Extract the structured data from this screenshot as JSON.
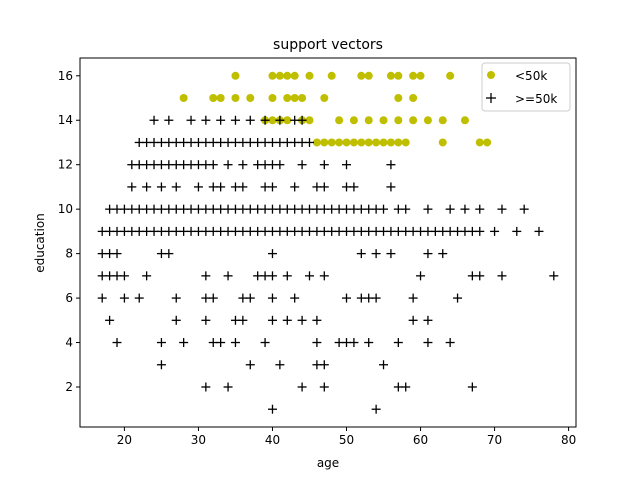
{
  "chart_data": {
    "type": "scatter",
    "title": "support vectors",
    "xlabel": "age",
    "ylabel": "education",
    "xlim": [
      14,
      81
    ],
    "ylim": [
      0.2,
      16.8
    ],
    "xticks": [
      20,
      30,
      40,
      50,
      60,
      70,
      80
    ],
    "yticks": [
      2,
      4,
      6,
      8,
      10,
      12,
      14,
      16
    ],
    "grid": false,
    "legend_position": "top-right",
    "series": [
      {
        "name": "<50k",
        "marker": "circle",
        "color": "#bfbf00",
        "points": [
          [
            35,
            16
          ],
          [
            40,
            16
          ],
          [
            41,
            16
          ],
          [
            42,
            16
          ],
          [
            43,
            16
          ],
          [
            45,
            16
          ],
          [
            48,
            16
          ],
          [
            52,
            16
          ],
          [
            53,
            16
          ],
          [
            56,
            16
          ],
          [
            57,
            16
          ],
          [
            59,
            16
          ],
          [
            60,
            16
          ],
          [
            64,
            16
          ],
          [
            28,
            15
          ],
          [
            32,
            15
          ],
          [
            33,
            15
          ],
          [
            35,
            15
          ],
          [
            37,
            15
          ],
          [
            40,
            15
          ],
          [
            42,
            15
          ],
          [
            43,
            15
          ],
          [
            44,
            15
          ],
          [
            47,
            15
          ],
          [
            57,
            15
          ],
          [
            59,
            15
          ],
          [
            39,
            14
          ],
          [
            40,
            14
          ],
          [
            41,
            14
          ],
          [
            42,
            14
          ],
          [
            44,
            14
          ],
          [
            45,
            14
          ],
          [
            49,
            14
          ],
          [
            51,
            14
          ],
          [
            53,
            14
          ],
          [
            55,
            14
          ],
          [
            57,
            14
          ],
          [
            59,
            14
          ],
          [
            61,
            14
          ],
          [
            63,
            14
          ],
          [
            66,
            14
          ],
          [
            46,
            13
          ],
          [
            47,
            13
          ],
          [
            48,
            13
          ],
          [
            49,
            13
          ],
          [
            50,
            13
          ],
          [
            51,
            13
          ],
          [
            52,
            13
          ],
          [
            53,
            13
          ],
          [
            54,
            13
          ],
          [
            55,
            13
          ],
          [
            56,
            13
          ],
          [
            57,
            13
          ],
          [
            58,
            13
          ],
          [
            63,
            13
          ],
          [
            68,
            13
          ],
          [
            69,
            13
          ]
        ]
      },
      {
        "name": ">=50k",
        "marker": "plus",
        "color": "#000000",
        "points": [
          [
            24,
            14
          ],
          [
            26,
            14
          ],
          [
            29,
            14
          ],
          [
            31,
            14
          ],
          [
            33,
            14
          ],
          [
            35,
            14
          ],
          [
            37,
            14
          ],
          [
            39,
            14
          ],
          [
            41,
            14
          ],
          [
            43,
            14
          ],
          [
            44,
            14
          ],
          [
            22,
            13
          ],
          [
            23,
            13
          ],
          [
            24,
            13
          ],
          [
            25,
            13
          ],
          [
            26,
            13
          ],
          [
            27,
            13
          ],
          [
            28,
            13
          ],
          [
            29,
            13
          ],
          [
            30,
            13
          ],
          [
            31,
            13
          ],
          [
            32,
            13
          ],
          [
            33,
            13
          ],
          [
            34,
            13
          ],
          [
            35,
            13
          ],
          [
            36,
            13
          ],
          [
            37,
            13
          ],
          [
            38,
            13
          ],
          [
            39,
            13
          ],
          [
            40,
            13
          ],
          [
            41,
            13
          ],
          [
            42,
            13
          ],
          [
            43,
            13
          ],
          [
            44,
            13
          ],
          [
            45,
            13
          ],
          [
            21,
            12
          ],
          [
            22,
            12
          ],
          [
            23,
            12
          ],
          [
            24,
            12
          ],
          [
            25,
            12
          ],
          [
            26,
            12
          ],
          [
            27,
            12
          ],
          [
            28,
            12
          ],
          [
            29,
            12
          ],
          [
            30,
            12
          ],
          [
            31,
            12
          ],
          [
            32,
            12
          ],
          [
            34,
            12
          ],
          [
            36,
            12
          ],
          [
            38,
            12
          ],
          [
            39,
            12
          ],
          [
            40,
            12
          ],
          [
            41,
            12
          ],
          [
            44,
            12
          ],
          [
            47,
            12
          ],
          [
            50,
            12
          ],
          [
            56,
            12
          ],
          [
            21,
            11
          ],
          [
            23,
            11
          ],
          [
            25,
            11
          ],
          [
            27,
            11
          ],
          [
            30,
            11
          ],
          [
            32,
            11
          ],
          [
            33,
            11
          ],
          [
            35,
            11
          ],
          [
            36,
            11
          ],
          [
            39,
            11
          ],
          [
            40,
            11
          ],
          [
            43,
            11
          ],
          [
            46,
            11
          ],
          [
            47,
            11
          ],
          [
            50,
            11
          ],
          [
            51,
            11
          ],
          [
            56,
            11
          ],
          [
            18,
            10
          ],
          [
            19,
            10
          ],
          [
            20,
            10
          ],
          [
            21,
            10
          ],
          [
            22,
            10
          ],
          [
            23,
            10
          ],
          [
            24,
            10
          ],
          [
            25,
            10
          ],
          [
            26,
            10
          ],
          [
            27,
            10
          ],
          [
            28,
            10
          ],
          [
            29,
            10
          ],
          [
            30,
            10
          ],
          [
            31,
            10
          ],
          [
            32,
            10
          ],
          [
            33,
            10
          ],
          [
            34,
            10
          ],
          [
            35,
            10
          ],
          [
            36,
            10
          ],
          [
            37,
            10
          ],
          [
            38,
            10
          ],
          [
            39,
            10
          ],
          [
            40,
            10
          ],
          [
            41,
            10
          ],
          [
            42,
            10
          ],
          [
            43,
            10
          ],
          [
            44,
            10
          ],
          [
            45,
            10
          ],
          [
            46,
            10
          ],
          [
            47,
            10
          ],
          [
            48,
            10
          ],
          [
            49,
            10
          ],
          [
            50,
            10
          ],
          [
            51,
            10
          ],
          [
            52,
            10
          ],
          [
            53,
            10
          ],
          [
            54,
            10
          ],
          [
            55,
            10
          ],
          [
            57,
            10
          ],
          [
            58,
            10
          ],
          [
            61,
            10
          ],
          [
            64,
            10
          ],
          [
            66,
            10
          ],
          [
            68,
            10
          ],
          [
            71,
            10
          ],
          [
            74,
            10
          ],
          [
            17,
            9
          ],
          [
            18,
            9
          ],
          [
            19,
            9
          ],
          [
            20,
            9
          ],
          [
            21,
            9
          ],
          [
            22,
            9
          ],
          [
            23,
            9
          ],
          [
            24,
            9
          ],
          [
            25,
            9
          ],
          [
            26,
            9
          ],
          [
            27,
            9
          ],
          [
            28,
            9
          ],
          [
            29,
            9
          ],
          [
            30,
            9
          ],
          [
            31,
            9
          ],
          [
            32,
            9
          ],
          [
            33,
            9
          ],
          [
            34,
            9
          ],
          [
            35,
            9
          ],
          [
            36,
            9
          ],
          [
            37,
            9
          ],
          [
            38,
            9
          ],
          [
            39,
            9
          ],
          [
            40,
            9
          ],
          [
            41,
            9
          ],
          [
            42,
            9
          ],
          [
            43,
            9
          ],
          [
            44,
            9
          ],
          [
            45,
            9
          ],
          [
            46,
            9
          ],
          [
            47,
            9
          ],
          [
            48,
            9
          ],
          [
            49,
            9
          ],
          [
            50,
            9
          ],
          [
            51,
            9
          ],
          [
            52,
            9
          ],
          [
            53,
            9
          ],
          [
            54,
            9
          ],
          [
            55,
            9
          ],
          [
            56,
            9
          ],
          [
            57,
            9
          ],
          [
            58,
            9
          ],
          [
            59,
            9
          ],
          [
            60,
            9
          ],
          [
            61,
            9
          ],
          [
            62,
            9
          ],
          [
            63,
            9
          ],
          [
            64,
            9
          ],
          [
            65,
            9
          ],
          [
            66,
            9
          ],
          [
            67,
            9
          ],
          [
            68,
            9
          ],
          [
            70,
            9
          ],
          [
            73,
            9
          ],
          [
            76,
            9
          ],
          [
            17,
            8
          ],
          [
            18,
            8
          ],
          [
            19,
            8
          ],
          [
            25,
            8
          ],
          [
            26,
            8
          ],
          [
            40,
            8
          ],
          [
            52,
            8
          ],
          [
            54,
            8
          ],
          [
            56,
            8
          ],
          [
            61,
            8
          ],
          [
            63,
            8
          ],
          [
            17,
            7
          ],
          [
            18,
            7
          ],
          [
            19,
            7
          ],
          [
            20,
            7
          ],
          [
            23,
            7
          ],
          [
            31,
            7
          ],
          [
            34,
            7
          ],
          [
            38,
            7
          ],
          [
            39,
            7
          ],
          [
            40,
            7
          ],
          [
            42,
            7
          ],
          [
            45,
            7
          ],
          [
            47,
            7
          ],
          [
            60,
            7
          ],
          [
            67,
            7
          ],
          [
            68,
            7
          ],
          [
            71,
            7
          ],
          [
            78,
            7
          ],
          [
            17,
            6
          ],
          [
            20,
            6
          ],
          [
            22,
            6
          ],
          [
            27,
            6
          ],
          [
            31,
            6
          ],
          [
            32,
            6
          ],
          [
            36,
            6
          ],
          [
            37,
            6
          ],
          [
            40,
            6
          ],
          [
            43,
            6
          ],
          [
            50,
            6
          ],
          [
            52,
            6
          ],
          [
            53,
            6
          ],
          [
            54,
            6
          ],
          [
            59,
            6
          ],
          [
            65,
            6
          ],
          [
            18,
            5
          ],
          [
            27,
            5
          ],
          [
            31,
            5
          ],
          [
            35,
            5
          ],
          [
            36,
            5
          ],
          [
            40,
            5
          ],
          [
            42,
            5
          ],
          [
            44,
            5
          ],
          [
            46,
            5
          ],
          [
            59,
            5
          ],
          [
            61,
            5
          ],
          [
            19,
            4
          ],
          [
            25,
            4
          ],
          [
            28,
            4
          ],
          [
            32,
            4
          ],
          [
            33,
            4
          ],
          [
            35,
            4
          ],
          [
            39,
            4
          ],
          [
            46,
            4
          ],
          [
            49,
            4
          ],
          [
            50,
            4
          ],
          [
            51,
            4
          ],
          [
            53,
            4
          ],
          [
            57,
            4
          ],
          [
            61,
            4
          ],
          [
            64,
            4
          ],
          [
            25,
            3
          ],
          [
            37,
            3
          ],
          [
            41,
            3
          ],
          [
            46,
            3
          ],
          [
            47,
            3
          ],
          [
            55,
            3
          ],
          [
            31,
            2
          ],
          [
            34,
            2
          ],
          [
            44,
            2
          ],
          [
            47,
            2
          ],
          [
            57,
            2
          ],
          [
            58,
            2
          ],
          [
            67,
            2
          ],
          [
            40,
            1
          ],
          [
            54,
            1
          ]
        ]
      }
    ]
  }
}
